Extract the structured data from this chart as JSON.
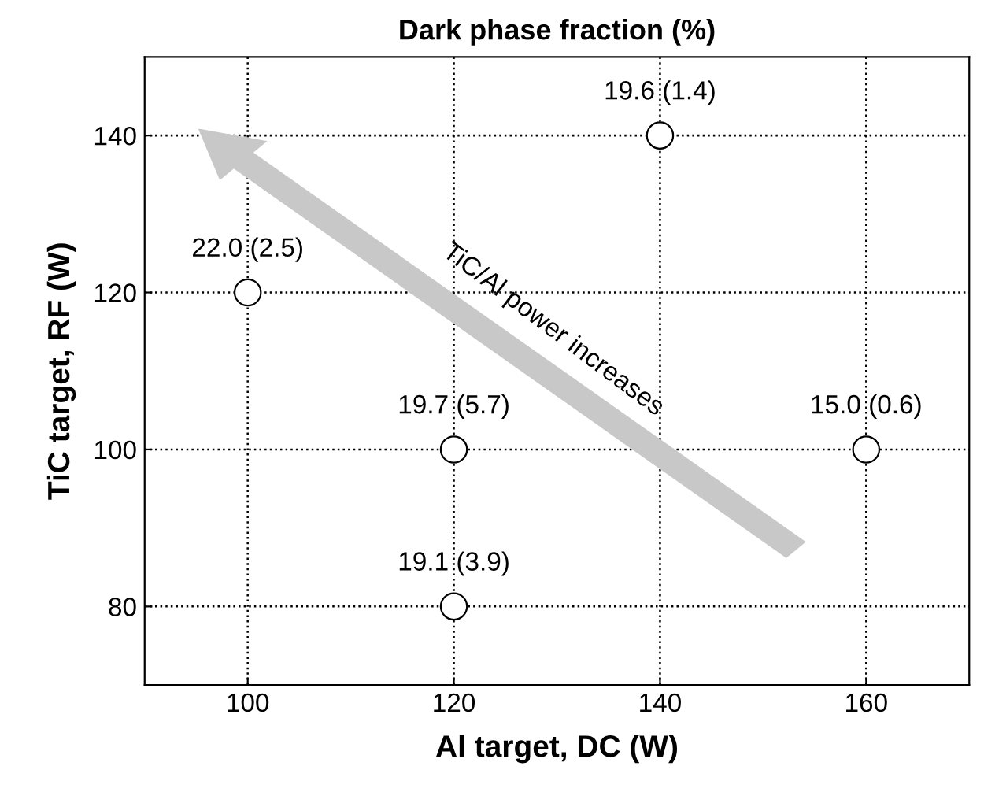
{
  "chart_data": {
    "type": "scatter",
    "title": "Dark phase fraction (%)",
    "xlabel": "Al target, DC (W)",
    "ylabel": "TiC target, RF (W)",
    "series": [
      {
        "color": "#ffffff",
        "x": [
          140,
          100,
          120,
          160,
          120
        ],
        "values": [
          140,
          120,
          100,
          100,
          80
        ],
        "value_labels": [
          "19.6 (1.4)",
          "22.0 (2.5)",
          "19.7 (5.7)",
          "15.0 (0.6)",
          "19.1 (3.9)"
        ]
      }
    ],
    "xlim": [
      90,
      170
    ],
    "ylim": [
      70,
      150
    ],
    "xticks": [
      100,
      120,
      140,
      160
    ],
    "yticks": [
      80,
      100,
      120,
      140
    ],
    "grid": true,
    "marker": "circle",
    "annotations": [
      "TiC/Al power increases"
    ]
  }
}
